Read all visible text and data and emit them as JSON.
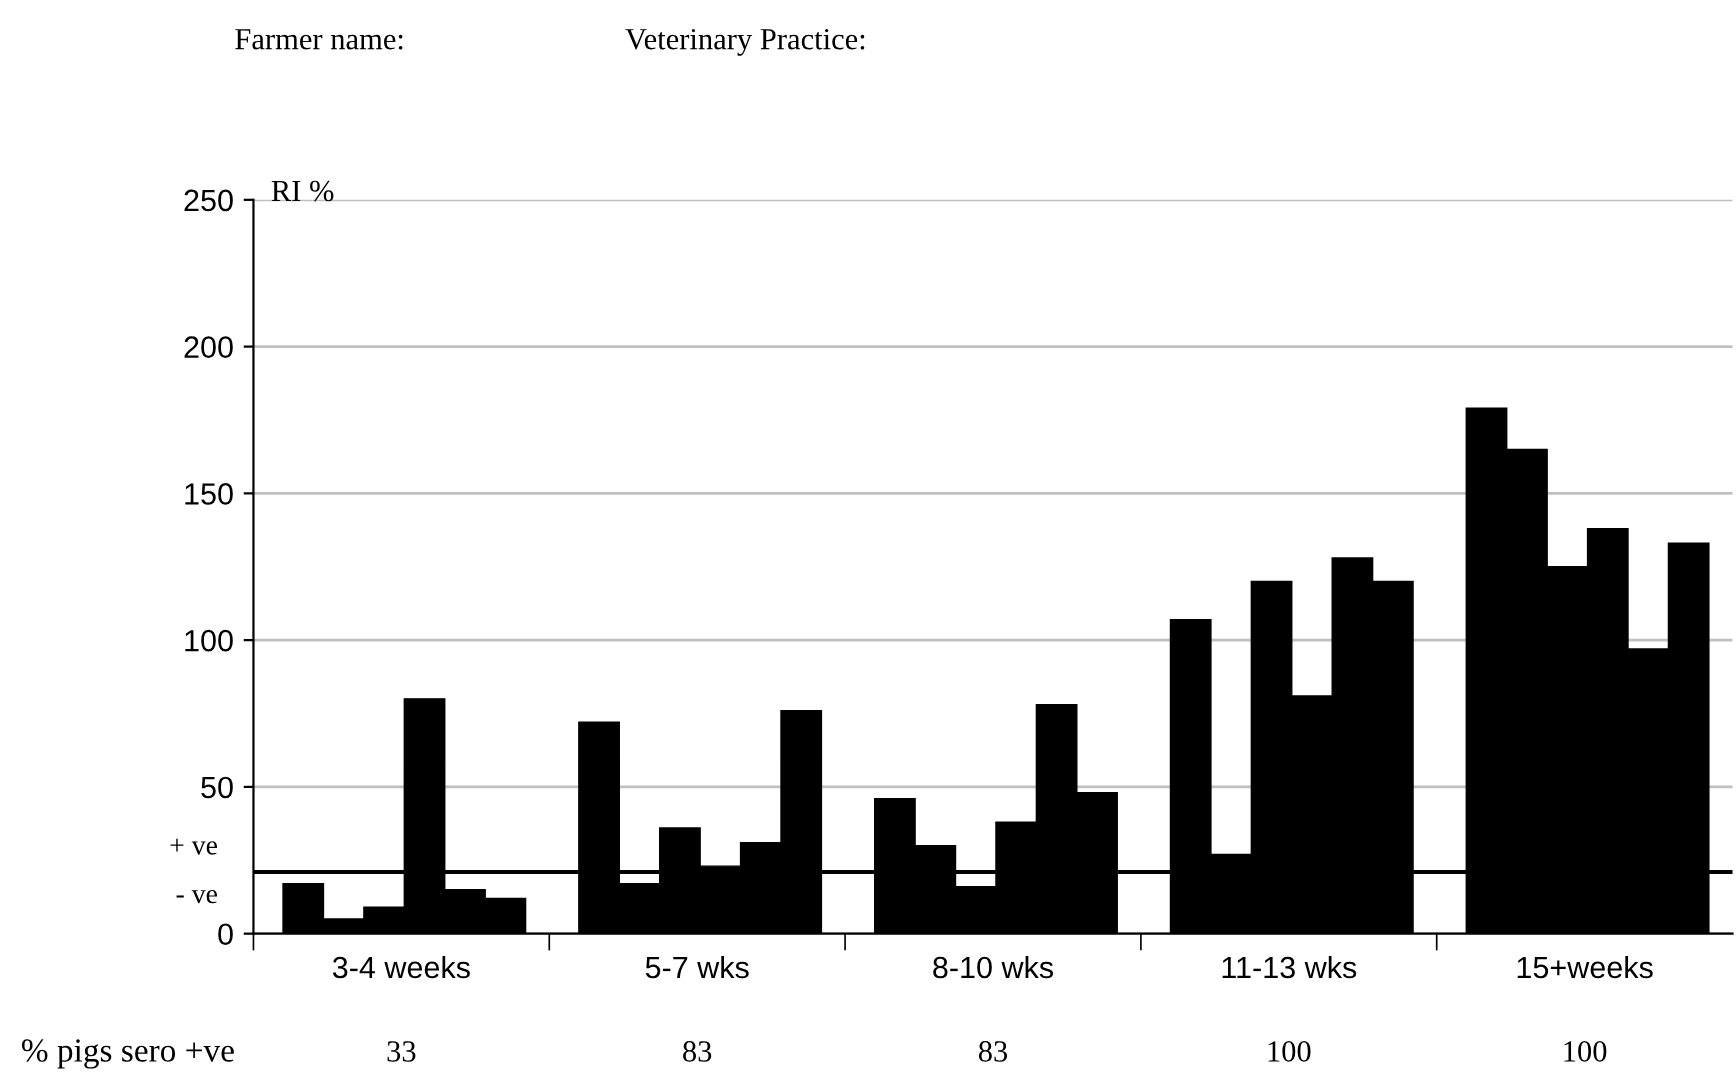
{
  "chart_data": {
    "type": "bar",
    "ylabel": "RI %",
    "categories": [
      "3-4 weeks",
      "5-7 wks",
      "8-10 wks",
      "11-13 wks",
      "15+weeks"
    ],
    "series": [
      {
        "color": "#000000",
        "values": [
          17,
          72,
          46,
          107,
          179
        ]
      },
      {
        "color": "#000000",
        "values": [
          5,
          17,
          30,
          27,
          165
        ]
      },
      {
        "color": "#000000",
        "values": [
          9,
          36,
          16,
          120,
          125
        ]
      },
      {
        "color": "#000000",
        "values": [
          80,
          23,
          38,
          81,
          138
        ]
      },
      {
        "color": "#000000",
        "values": [
          15,
          31,
          78,
          128,
          97
        ]
      },
      {
        "color": "#000000",
        "values": [
          12,
          76,
          48,
          120,
          133
        ]
      }
    ],
    "ylim": [
      0,
      250
    ],
    "yticks": [
      0,
      50,
      100,
      150,
      200,
      250
    ],
    "grid": "y",
    "ref_lines": [
      {
        "axis": "y",
        "value": 21,
        "color": "#000000"
      }
    ],
    "annotations": [
      "Farmer name:",
      "Veterinary Practice:",
      "+ ve",
      "- ve",
      "% pigs sero +ve",
      "33",
      "83",
      "83",
      "100",
      "100"
    ]
  }
}
